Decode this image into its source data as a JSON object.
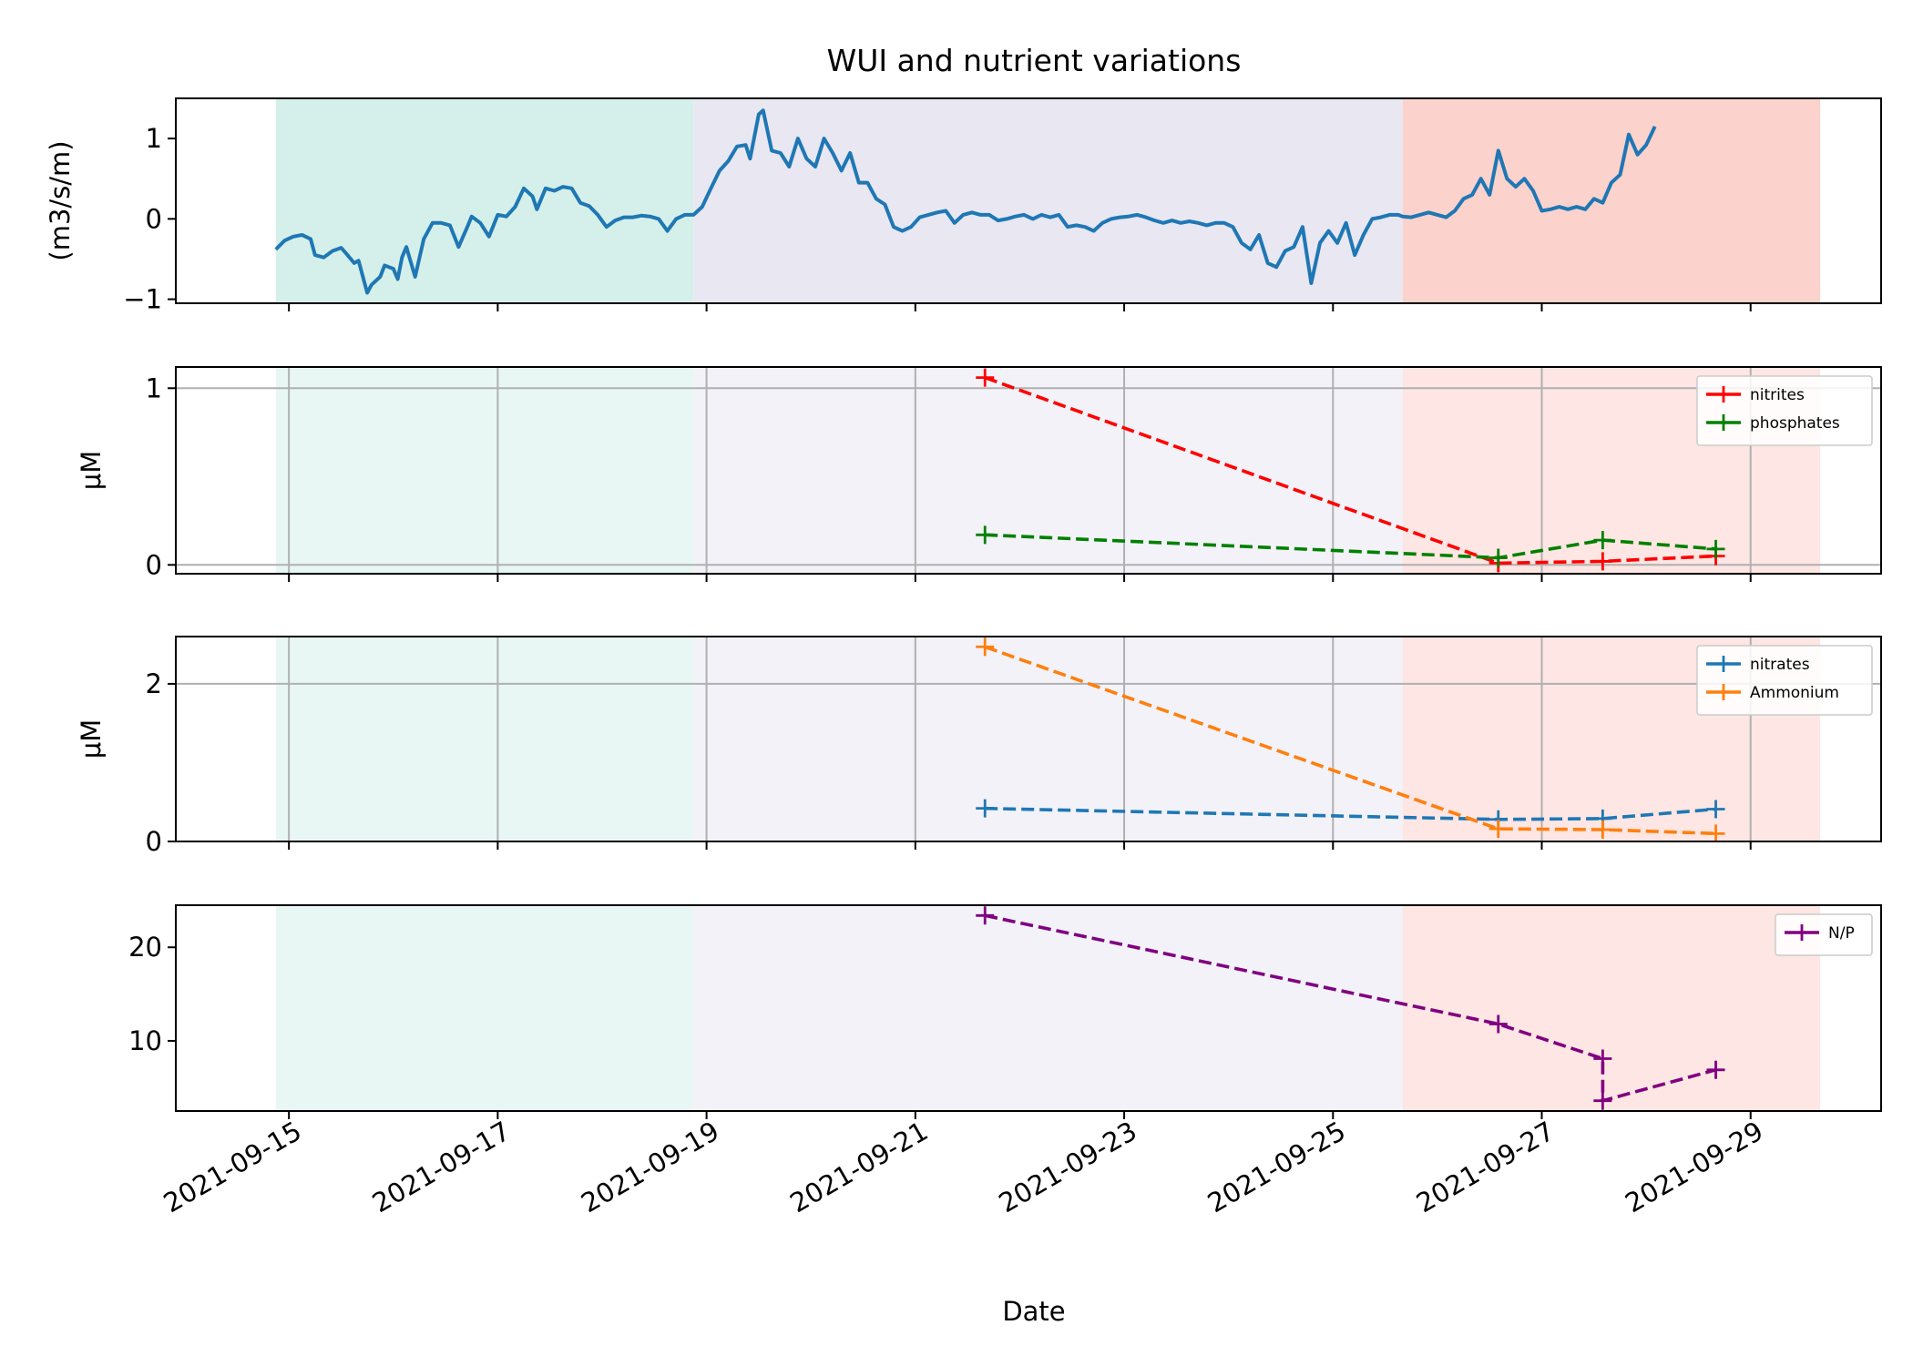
{
  "chart_data": {
    "type": "line",
    "title": "WUI and nutrient variations",
    "xlabel": "Date",
    "x_ticks": [
      "2021-09-15",
      "2021-09-17",
      "2021-09-19",
      "2021-09-21",
      "2021-09-23",
      "2021-09-25",
      "2021-09-27",
      "2021-09-29"
    ],
    "x_range": [
      "2021-09-13 22:00",
      "2021-09-30 06:00"
    ],
    "shaded_periods": [
      {
        "start": "2021-09-14 21:00",
        "end": "2021-09-18 21:00",
        "color": "#d5f0ea"
      },
      {
        "start": "2021-09-18 21:00",
        "end": "2021-09-25 16:00",
        "color": "#e8e7f2"
      },
      {
        "start": "2021-09-25 16:00",
        "end": "2021-09-29 16:00",
        "color": "#fcd2cc"
      }
    ],
    "panels": [
      {
        "id": "wui",
        "ylabel": "(m3/s/m)",
        "ylim": [
          -1.05,
          1.5
        ],
        "yticks": [
          -1,
          0,
          1
        ],
        "ytick_labels": [
          "−1",
          "0",
          "1"
        ],
        "grid": false,
        "legend": false,
        "series": [
          {
            "color": "#1f77b4",
            "style": "solid",
            "points": [
              [
                "2021-09-14 21:00",
                -0.38
              ],
              [
                "2021-09-14 23:00",
                -0.27
              ],
              [
                "2021-09-15 01:00",
                -0.22
              ],
              [
                "2021-09-15 03:00",
                -0.2
              ],
              [
                "2021-09-15 05:00",
                -0.25
              ],
              [
                "2021-09-15 06:00",
                -0.45
              ],
              [
                "2021-09-15 08:00",
                -0.48
              ],
              [
                "2021-09-15 10:00",
                -0.4
              ],
              [
                "2021-09-15 12:00",
                -0.36
              ],
              [
                "2021-09-15 13:00",
                -0.42
              ],
              [
                "2021-09-15 15:00",
                -0.55
              ],
              [
                "2021-09-15 16:00",
                -0.52
              ],
              [
                "2021-09-15 18:00",
                -0.92
              ],
              [
                "2021-09-15 19:00",
                -0.82
              ],
              [
                "2021-09-15 21:00",
                -0.72
              ],
              [
                "2021-09-15 22:00",
                -0.58
              ],
              [
                "2021-09-16 00:00",
                -0.62
              ],
              [
                "2021-09-16 01:00",
                -0.75
              ],
              [
                "2021-09-16 02:00",
                -0.48
              ],
              [
                "2021-09-16 03:00",
                -0.35
              ],
              [
                "2021-09-16 05:00",
                -0.72
              ],
              [
                "2021-09-16 07:00",
                -0.25
              ],
              [
                "2021-09-16 09:00",
                -0.05
              ],
              [
                "2021-09-16 11:00",
                -0.05
              ],
              [
                "2021-09-16 13:00",
                -0.08
              ],
              [
                "2021-09-16 15:00",
                -0.35
              ],
              [
                "2021-09-16 17:00",
                -0.1
              ],
              [
                "2021-09-16 18:00",
                0.03
              ],
              [
                "2021-09-16 20:00",
                -0.05
              ],
              [
                "2021-09-16 22:00",
                -0.22
              ],
              [
                "2021-09-17 00:00",
                0.05
              ],
              [
                "2021-09-17 02:00",
                0.03
              ],
              [
                "2021-09-17 04:00",
                0.15
              ],
              [
                "2021-09-17 06:00",
                0.38
              ],
              [
                "2021-09-17 08:00",
                0.28
              ],
              [
                "2021-09-17 09:00",
                0.12
              ],
              [
                "2021-09-17 11:00",
                0.38
              ],
              [
                "2021-09-17 13:00",
                0.35
              ],
              [
                "2021-09-17 15:00",
                0.4
              ],
              [
                "2021-09-17 17:00",
                0.38
              ],
              [
                "2021-09-17 19:00",
                0.2
              ],
              [
                "2021-09-17 21:00",
                0.16
              ],
              [
                "2021-09-17 23:00",
                0.05
              ],
              [
                "2021-09-18 01:00",
                -0.1
              ],
              [
                "2021-09-18 03:00",
                -0.02
              ],
              [
                "2021-09-18 05:00",
                0.02
              ],
              [
                "2021-09-18 07:00",
                0.02
              ],
              [
                "2021-09-18 09:00",
                0.04
              ],
              [
                "2021-09-18 11:00",
                0.03
              ],
              [
                "2021-09-18 13:00",
                0.0
              ],
              [
                "2021-09-18 15:00",
                -0.15
              ],
              [
                "2021-09-18 17:00",
                0.0
              ],
              [
                "2021-09-18 19:00",
                0.05
              ],
              [
                "2021-09-18 21:00",
                0.05
              ],
              [
                "2021-09-18 23:00",
                0.15
              ],
              [
                "2021-09-19 01:00",
                0.38
              ],
              [
                "2021-09-19 03:00",
                0.6
              ],
              [
                "2021-09-19 05:00",
                0.72
              ],
              [
                "2021-09-19 07:00",
                0.9
              ],
              [
                "2021-09-19 09:00",
                0.92
              ],
              [
                "2021-09-19 10:00",
                0.75
              ],
              [
                "2021-09-19 12:00",
                1.3
              ],
              [
                "2021-09-19 13:00",
                1.35
              ],
              [
                "2021-09-19 15:00",
                0.85
              ],
              [
                "2021-09-19 17:00",
                0.82
              ],
              [
                "2021-09-19 19:00",
                0.65
              ],
              [
                "2021-09-19 21:00",
                1.0
              ],
              [
                "2021-09-19 23:00",
                0.75
              ],
              [
                "2021-09-20 01:00",
                0.65
              ],
              [
                "2021-09-20 03:00",
                1.0
              ],
              [
                "2021-09-20 05:00",
                0.82
              ],
              [
                "2021-09-20 07:00",
                0.6
              ],
              [
                "2021-09-20 09:00",
                0.82
              ],
              [
                "2021-09-20 11:00",
                0.45
              ],
              [
                "2021-09-20 13:00",
                0.45
              ],
              [
                "2021-09-20 15:00",
                0.25
              ],
              [
                "2021-09-20 17:00",
                0.18
              ],
              [
                "2021-09-20 19:00",
                -0.1
              ],
              [
                "2021-09-20 21:00",
                -0.15
              ],
              [
                "2021-09-20 23:00",
                -0.1
              ],
              [
                "2021-09-21 01:00",
                0.02
              ],
              [
                "2021-09-21 03:00",
                0.05
              ],
              [
                "2021-09-21 05:00",
                0.08
              ],
              [
                "2021-09-21 07:00",
                0.1
              ],
              [
                "2021-09-21 09:00",
                -0.05
              ],
              [
                "2021-09-21 11:00",
                0.05
              ],
              [
                "2021-09-21 13:00",
                0.08
              ],
              [
                "2021-09-21 15:00",
                0.05
              ],
              [
                "2021-09-21 17:00",
                0.05
              ],
              [
                "2021-09-21 19:00",
                -0.02
              ],
              [
                "2021-09-21 21:00",
                0.0
              ],
              [
                "2021-09-21 23:00",
                0.03
              ],
              [
                "2021-09-22 01:00",
                0.05
              ],
              [
                "2021-09-22 03:00",
                0.0
              ],
              [
                "2021-09-22 05:00",
                0.05
              ],
              [
                "2021-09-22 07:00",
                0.02
              ],
              [
                "2021-09-22 09:00",
                0.05
              ],
              [
                "2021-09-22 11:00",
                -0.1
              ],
              [
                "2021-09-22 13:00",
                -0.08
              ],
              [
                "2021-09-22 15:00",
                -0.1
              ],
              [
                "2021-09-22 17:00",
                -0.15
              ],
              [
                "2021-09-22 19:00",
                -0.05
              ],
              [
                "2021-09-22 21:00",
                0.0
              ],
              [
                "2021-09-22 23:00",
                0.02
              ],
              [
                "2021-09-23 01:00",
                0.03
              ],
              [
                "2021-09-23 03:00",
                0.05
              ],
              [
                "2021-09-23 05:00",
                0.02
              ],
              [
                "2021-09-23 07:00",
                -0.02
              ],
              [
                "2021-09-23 09:00",
                -0.05
              ],
              [
                "2021-09-23 11:00",
                -0.02
              ],
              [
                "2021-09-23 13:00",
                -0.05
              ],
              [
                "2021-09-23 15:00",
                -0.03
              ],
              [
                "2021-09-23 17:00",
                -0.05
              ],
              [
                "2021-09-23 19:00",
                -0.08
              ],
              [
                "2021-09-23 21:00",
                -0.05
              ],
              [
                "2021-09-23 23:00",
                -0.05
              ],
              [
                "2021-09-24 01:00",
                -0.1
              ],
              [
                "2021-09-24 03:00",
                -0.3
              ],
              [
                "2021-09-24 05:00",
                -0.38
              ],
              [
                "2021-09-24 07:00",
                -0.2
              ],
              [
                "2021-09-24 09:00",
                -0.55
              ],
              [
                "2021-09-24 11:00",
                -0.6
              ],
              [
                "2021-09-24 13:00",
                -0.4
              ],
              [
                "2021-09-24 15:00",
                -0.35
              ],
              [
                "2021-09-24 17:00",
                -0.1
              ],
              [
                "2021-09-24 19:00",
                -0.8
              ],
              [
                "2021-09-24 21:00",
                -0.3
              ],
              [
                "2021-09-24 23:00",
                -0.15
              ],
              [
                "2021-09-25 01:00",
                -0.3
              ],
              [
                "2021-09-25 03:00",
                -0.05
              ],
              [
                "2021-09-25 05:00",
                -0.45
              ],
              [
                "2021-09-25 07:00",
                -0.2
              ],
              [
                "2021-09-25 09:00",
                0.0
              ],
              [
                "2021-09-25 11:00",
                0.02
              ],
              [
                "2021-09-25 13:00",
                0.05
              ],
              [
                "2021-09-25 15:00",
                0.05
              ],
              [
                "2021-09-25 16:00",
                0.03
              ],
              [
                "2021-09-25 18:00",
                0.02
              ],
              [
                "2021-09-25 20:00",
                0.05
              ],
              [
                "2021-09-25 22:00",
                0.08
              ],
              [
                "2021-09-26 00:00",
                0.05
              ],
              [
                "2021-09-26 02:00",
                0.02
              ],
              [
                "2021-09-26 04:00",
                0.1
              ],
              [
                "2021-09-26 06:00",
                0.25
              ],
              [
                "2021-09-26 08:00",
                0.3
              ],
              [
                "2021-09-26 10:00",
                0.5
              ],
              [
                "2021-09-26 12:00",
                0.3
              ],
              [
                "2021-09-26 14:00",
                0.85
              ],
              [
                "2021-09-26 16:00",
                0.5
              ],
              [
                "2021-09-26 18:00",
                0.4
              ],
              [
                "2021-09-26 20:00",
                0.5
              ],
              [
                "2021-09-26 22:00",
                0.35
              ],
              [
                "2021-09-27 00:00",
                0.1
              ],
              [
                "2021-09-27 02:00",
                0.12
              ],
              [
                "2021-09-27 04:00",
                0.15
              ],
              [
                "2021-09-27 06:00",
                0.12
              ],
              [
                "2021-09-27 08:00",
                0.15
              ],
              [
                "2021-09-27 10:00",
                0.12
              ],
              [
                "2021-09-27 12:00",
                0.25
              ],
              [
                "2021-09-27 14:00",
                0.2
              ],
              [
                "2021-09-27 16:00",
                0.45
              ],
              [
                "2021-09-27 18:00",
                0.55
              ],
              [
                "2021-09-27 20:00",
                1.05
              ],
              [
                "2021-09-27 22:00",
                0.8
              ],
              [
                "2021-09-28 00:00",
                0.92
              ],
              [
                "2021-09-28 02:00",
                1.15
              ]
            ]
          }
        ]
      },
      {
        "id": "nitrites-phosphates",
        "ylabel": "μM",
        "ylim": [
          -0.05,
          1.12
        ],
        "yticks": [
          0,
          1
        ],
        "ytick_labels": [
          "0",
          "1"
        ],
        "grid": true,
        "legend": "top-right",
        "series": [
          {
            "name": "nitrites",
            "color": "#ff0000",
            "style": "dashed",
            "points": [
              [
                "2021-09-21 16:00",
                1.06
              ],
              [
                "2021-09-26 14:00",
                0.01
              ],
              [
                "2021-09-27 14:00",
                0.02
              ],
              [
                "2021-09-28 16:00",
                0.05
              ]
            ]
          },
          {
            "name": "phosphates",
            "color": "#008000",
            "style": "dashed",
            "points": [
              [
                "2021-09-21 16:00",
                0.17
              ],
              [
                "2021-09-26 14:00",
                0.04
              ],
              [
                "2021-09-27 14:00",
                0.14
              ],
              [
                "2021-09-28 16:00",
                0.09
              ]
            ]
          }
        ]
      },
      {
        "id": "nitrates-ammonium",
        "ylabel": "μM",
        "ylim": [
          0,
          2.6
        ],
        "yticks": [
          0,
          2
        ],
        "ytick_labels": [
          "0",
          "2"
        ],
        "grid": true,
        "legend": "top-right",
        "series": [
          {
            "name": "nitrates",
            "color": "#1f77b4",
            "style": "dashed",
            "points": [
              [
                "2021-09-21 16:00",
                0.42
              ],
              [
                "2021-09-26 14:00",
                0.28
              ],
              [
                "2021-09-27 14:00",
                0.29
              ],
              [
                "2021-09-28 16:00",
                0.41
              ]
            ]
          },
          {
            "name": "Ammonium",
            "color": "#ff7f0e",
            "style": "dashed",
            "points": [
              [
                "2021-09-21 16:00",
                2.47
              ],
              [
                "2021-09-26 14:00",
                0.16
              ],
              [
                "2021-09-27 14:00",
                0.15
              ],
              [
                "2021-09-28 16:00",
                0.1
              ]
            ]
          }
        ]
      },
      {
        "id": "np-ratio",
        "ylabel": "",
        "ylim": [
          2.5,
          24.5
        ],
        "yticks": [
          10,
          20
        ],
        "ytick_labels": [
          "10",
          "20"
        ],
        "grid": false,
        "legend": "top-right",
        "series": [
          {
            "name": "N/P",
            "color": "#800080",
            "style": "dashed",
            "points": [
              [
                "2021-09-21 16:00",
                23.4
              ],
              [
                "2021-09-26 14:00",
                11.8
              ],
              [
                "2021-09-27 14:00",
                8.1
              ],
              [
                "2021-09-27 14:00",
                3.6
              ],
              [
                "2021-09-28 16:00",
                6.9
              ]
            ]
          }
        ]
      }
    ]
  }
}
